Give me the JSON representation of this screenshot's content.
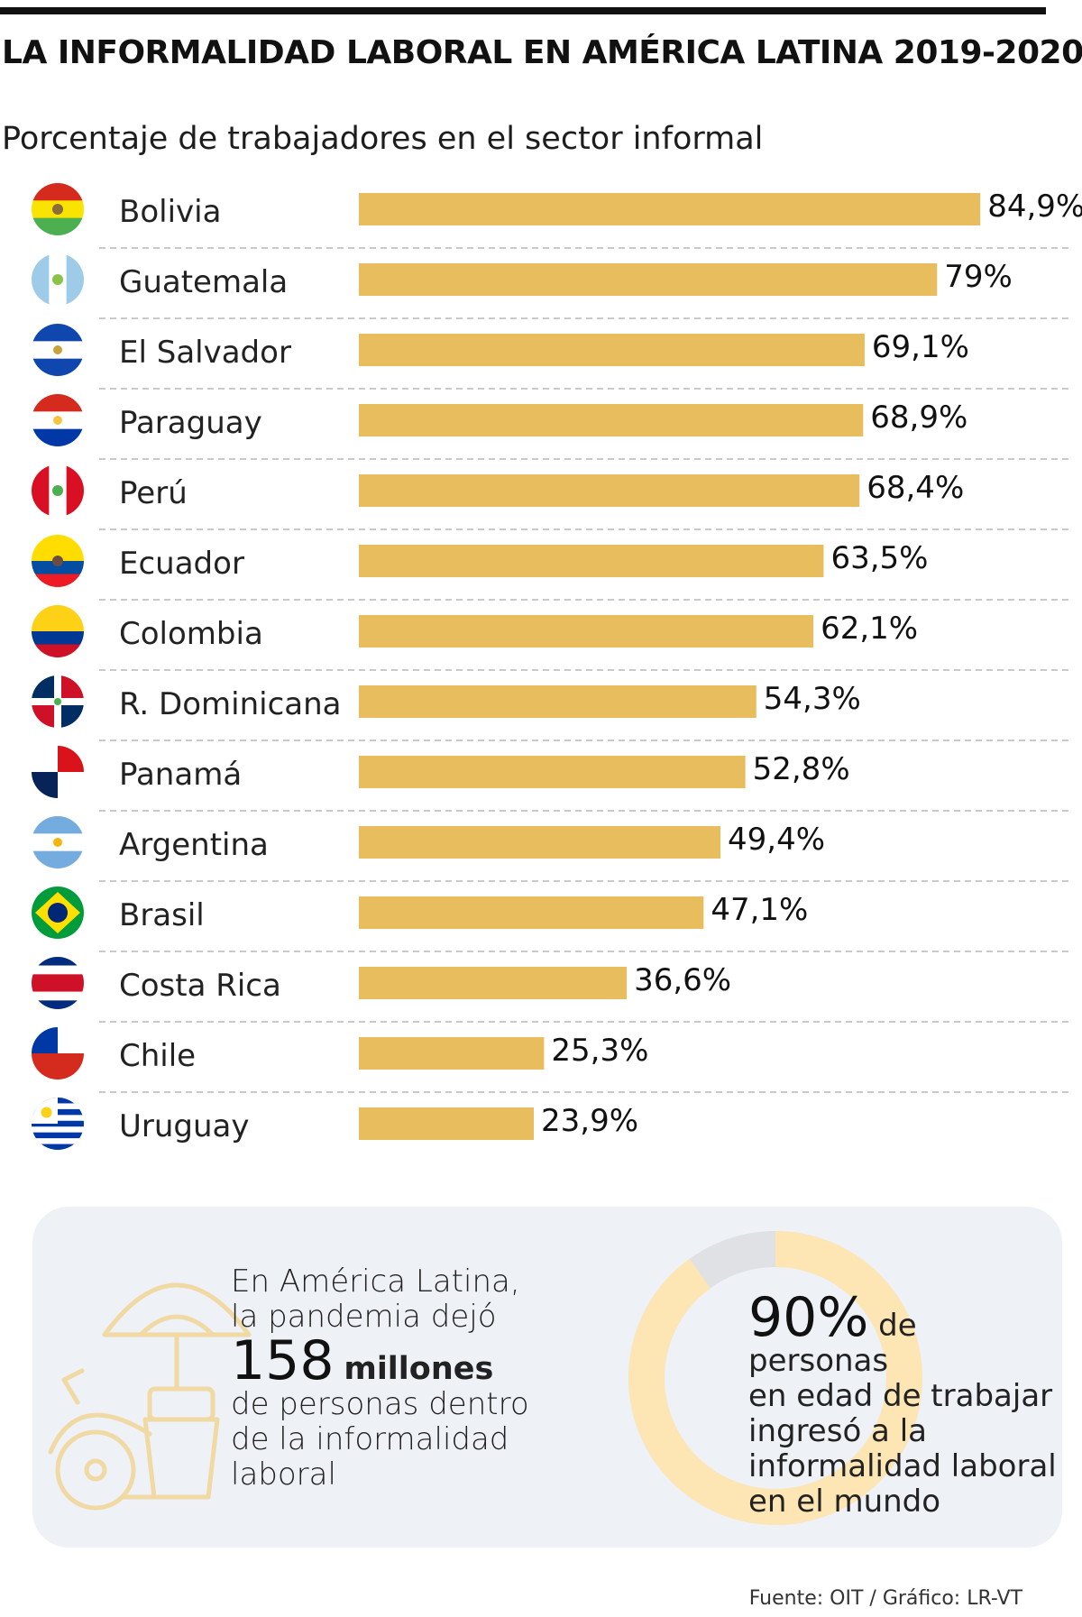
{
  "header": {
    "title": "LA INFORMALIDAD LABORAL EN AMÉRICA LATINA 2019-2020",
    "subtitle": "Porcentaje de trabajadores en el sector informal"
  },
  "colors": {
    "bar": "#e8bd5e",
    "panel_bg": "#eef1f6",
    "donut": "#fde6b4",
    "donut_rest": "#dfe1e4",
    "icon": "#f1d9a3"
  },
  "chart_data": {
    "type": "bar",
    "orientation": "horizontal",
    "title": "LA INFORMALIDAD LABORAL EN AMÉRICA LATINA 2019-2020",
    "subtitle": "Porcentaje de trabajadores en el sector informal",
    "categories": [
      "Bolivia",
      "Guatemala",
      "El Salvador",
      "Paraguay",
      "Perú",
      "Ecuador",
      "Colombia",
      "R. Dominicana",
      "Panamá",
      "Argentina",
      "Brasil",
      "Costa Rica",
      "Chile",
      "Uruguay"
    ],
    "values": [
      84.9,
      79,
      69.1,
      68.9,
      68.4,
      63.5,
      62.1,
      54.3,
      52.8,
      49.4,
      47.1,
      36.6,
      25.3,
      23.9
    ],
    "labels": [
      "84,9%",
      "79%",
      "69,1%",
      "68,9%",
      "68,4%",
      "63,5%",
      "62,1%",
      "54,3%",
      "52,8%",
      "49,4%",
      "47,1%",
      "36,6%",
      "25,3%",
      "23,9%"
    ],
    "flags": [
      "bolivia-flag",
      "guatemala-flag",
      "el-salvador-flag",
      "paraguay-flag",
      "peru-flag",
      "ecuador-flag",
      "colombia-flag",
      "dominican-republic-flag",
      "panama-flag",
      "argentina-flag",
      "brazil-flag",
      "costa-rica-flag",
      "chile-flag",
      "uruguay-flag"
    ],
    "xlim": [
      0,
      85
    ],
    "grid": false,
    "legend": "none"
  },
  "panel": {
    "stat1": {
      "line1": "En América Latina,",
      "line2": "la pandemia dejó",
      "number": "158",
      "unit": "millones",
      "line3": "de personas dentro",
      "line4": "de la informalidad",
      "line5": "laboral"
    },
    "stat2": {
      "percent": "90%",
      "text1": "de personas",
      "line2": "en edad de trabajar",
      "line3": "ingresó a la",
      "line4": "informalidad laboral",
      "line5": "en el mundo",
      "donut_fraction": 0.9
    }
  },
  "footer": {
    "source": "Fuente: OIT / Gráfico: LR-VT"
  }
}
